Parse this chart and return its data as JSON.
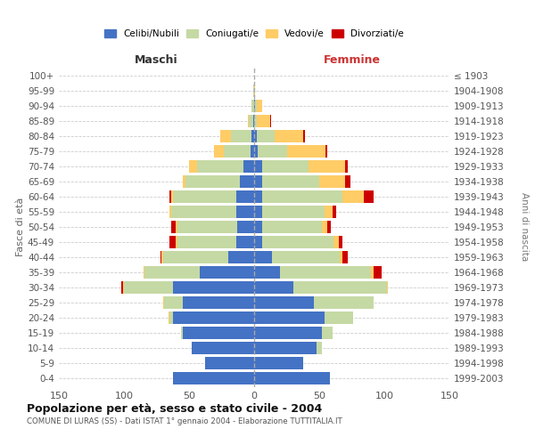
{
  "age_groups": [
    "0-4",
    "5-9",
    "10-14",
    "15-19",
    "20-24",
    "25-29",
    "30-34",
    "35-39",
    "40-44",
    "45-49",
    "50-54",
    "55-59",
    "60-64",
    "65-69",
    "70-74",
    "75-79",
    "80-84",
    "85-89",
    "90-94",
    "95-99",
    "100+"
  ],
  "birth_years": [
    "1999-2003",
    "1994-1998",
    "1989-1993",
    "1984-1988",
    "1979-1983",
    "1974-1978",
    "1969-1973",
    "1964-1968",
    "1959-1963",
    "1954-1958",
    "1949-1953",
    "1944-1948",
    "1939-1943",
    "1934-1938",
    "1929-1933",
    "1924-1928",
    "1919-1923",
    "1914-1918",
    "1909-1913",
    "1904-1908",
    "≤ 1903"
  ],
  "male": {
    "celibi": [
      62,
      38,
      48,
      55,
      62,
      55,
      62,
      42,
      20,
      14,
      13,
      14,
      14,
      11,
      8,
      3,
      2,
      1,
      0,
      0,
      0
    ],
    "coniugati": [
      0,
      0,
      0,
      1,
      3,
      14,
      38,
      42,
      50,
      45,
      46,
      50,
      48,
      42,
      36,
      20,
      16,
      3,
      2,
      1,
      0
    ],
    "vedovi": [
      0,
      0,
      0,
      0,
      1,
      1,
      1,
      1,
      1,
      1,
      1,
      1,
      2,
      2,
      6,
      8,
      8,
      1,
      0,
      0,
      0
    ],
    "divorziati": [
      0,
      0,
      0,
      0,
      0,
      0,
      1,
      0,
      1,
      5,
      4,
      0,
      1,
      0,
      0,
      0,
      0,
      0,
      0,
      0,
      0
    ]
  },
  "female": {
    "nubili": [
      58,
      38,
      48,
      52,
      54,
      46,
      30,
      20,
      14,
      6,
      6,
      6,
      6,
      6,
      6,
      3,
      2,
      0,
      1,
      0,
      0
    ],
    "coniugate": [
      0,
      0,
      4,
      8,
      22,
      46,
      72,
      70,
      52,
      55,
      46,
      48,
      62,
      44,
      36,
      22,
      14,
      2,
      1,
      0,
      0
    ],
    "vedove": [
      0,
      0,
      0,
      0,
      0,
      0,
      1,
      2,
      2,
      4,
      4,
      6,
      16,
      20,
      28,
      30,
      22,
      10,
      4,
      1,
      0
    ],
    "divorziate": [
      0,
      0,
      0,
      0,
      0,
      0,
      0,
      6,
      4,
      3,
      3,
      3,
      8,
      4,
      2,
      1,
      1,
      1,
      0,
      0,
      0
    ]
  },
  "colors": {
    "celibi": "#4472C4",
    "coniugati": "#C5D9A4",
    "vedovi": "#FFCC66",
    "divorziati": "#CC0000"
  },
  "title": "Popolazione per età, sesso e stato civile - 2004",
  "subtitle": "COMUNE DI LURAS (SS) - Dati ISTAT 1° gennaio 2004 - Elaborazione TUTTITALIA.IT",
  "xlabel_left": "Maschi",
  "xlabel_right": "Femmine",
  "ylabel_left": "Fasce di età",
  "ylabel_right": "Anni di nascita",
  "xlim": 150,
  "bg_color": "#ffffff",
  "grid_color": "#cccccc",
  "legend_labels": [
    "Celibi/Nubili",
    "Coniugati/e",
    "Vedovi/e",
    "Divorziati/e"
  ]
}
